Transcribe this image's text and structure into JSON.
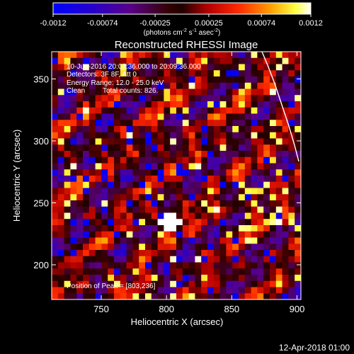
{
  "chart_data": {
    "type": "heatmap",
    "title": "Reconstructed RHESSI Image",
    "xlabel": "Heliocentric X (arcsec)",
    "ylabel": "Heliocentric Y (arcsec)",
    "xlim": [
      712,
      903
    ],
    "ylim": [
      172,
      372
    ],
    "x_ticks": [
      750,
      800,
      850,
      900
    ],
    "y_ticks": [
      200,
      250,
      300,
      350
    ],
    "colorbar": {
      "label_main": "(photons cm",
      "label_sup1": "-2",
      "label_mid1": " s",
      "label_sup2": "-1",
      "label_mid2": " asec",
      "label_sup3": "-2",
      "label_end": ")",
      "range": [
        -0.0012,
        0.0012
      ],
      "ticks": [
        "-0.0012",
        "-0.00074",
        "-0.00025",
        "0.00025",
        "0.00074",
        "0.0012"
      ],
      "colormap": "rainbow-blue-to-white"
    },
    "annotations": {
      "time_range": "10-Jun-2016 20:07:36.000 to 20:09:36.000",
      "detectors": "Detectors: 3F 8F, Att 0",
      "energy": "Energy Range: 12.0 - 25.0 keV",
      "method": "Clean",
      "counts": "Total counts: 826.",
      "peak": "Position of Peak = [803,236]"
    },
    "peak": [
      803,
      236
    ],
    "limb_color": "#ffffff"
  },
  "footer": {
    "date": "12-Apr-2018 01:00"
  }
}
